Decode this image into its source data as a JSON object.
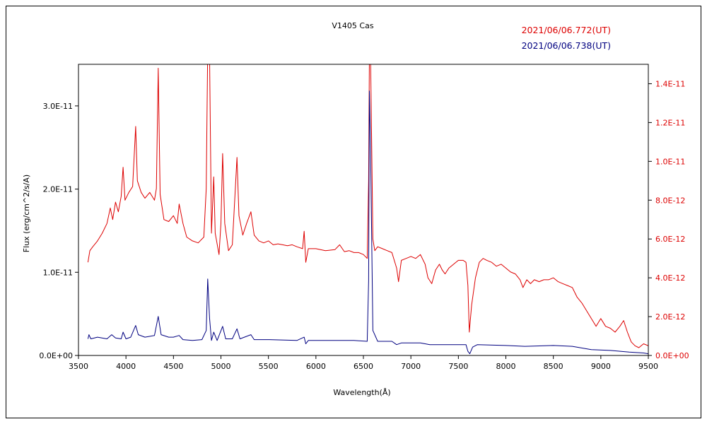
{
  "chart_data": {
    "type": "line",
    "title": "V1405 Cas",
    "xlabel": "Wavelength(Å)",
    "ylabel": "Flux (erg/cm^2/s/A)",
    "xlim": [
      3500,
      9500
    ],
    "x_ticks": [
      3500,
      4000,
      4500,
      5000,
      5500,
      6000,
      6500,
      7000,
      7500,
      8000,
      8500,
      9000,
      9500
    ],
    "y_left": {
      "lim": [
        0,
        3.5e-11
      ],
      "ticks": [
        0,
        1e-11,
        2e-11,
        3e-11
      ],
      "tick_labels": [
        "0.0E+00",
        "1.0E-11",
        "2.0E-11",
        "3.0E-11"
      ],
      "color": "#000000"
    },
    "y_right": {
      "lim": [
        0,
        1.5e-11
      ],
      "ticks": [
        0,
        2e-12,
        4e-12,
        6e-12,
        8e-12,
        1e-11,
        1.2e-11,
        1.4e-11
      ],
      "tick_labels": [
        "0.0E+00",
        "2.0E-12",
        "4.0E-12",
        "6.0E-12",
        "8.0E-12",
        "1.0E-11",
        "1.2E-11",
        "1.4E-11"
      ],
      "color": "#dd0000"
    },
    "grid": false,
    "legend_position": "top-right",
    "series": [
      {
        "name": "2021/06/06.772(UT)",
        "color": "#dd0000",
        "axis": "right",
        "points": [
          [
            3600,
            4.8e-12
          ],
          [
            3620,
            5.4e-12
          ],
          [
            3650,
            5.6e-12
          ],
          [
            3700,
            5.9e-12
          ],
          [
            3750,
            6.3e-12
          ],
          [
            3800,
            6.8e-12
          ],
          [
            3835,
            7.6e-12
          ],
          [
            3860,
            7e-12
          ],
          [
            3890,
            7.9e-12
          ],
          [
            3920,
            7.4e-12
          ],
          [
            3950,
            8.2e-12
          ],
          [
            3970,
            9.7e-12
          ],
          [
            3990,
            8e-12
          ],
          [
            4030,
            8.4e-12
          ],
          [
            4070,
            8.7e-12
          ],
          [
            4102,
            1.18e-11
          ],
          [
            4120,
            9e-12
          ],
          [
            4160,
            8.4e-12
          ],
          [
            4200,
            8.1e-12
          ],
          [
            4250,
            8.4e-12
          ],
          [
            4300,
            8e-12
          ],
          [
            4320,
            8.6e-12
          ],
          [
            4340,
            1.48e-11
          ],
          [
            4360,
            8.3e-12
          ],
          [
            4400,
            7e-12
          ],
          [
            4450,
            6.9e-12
          ],
          [
            4500,
            7.2e-12
          ],
          [
            4540,
            6.8e-12
          ],
          [
            4560,
            7.8e-12
          ],
          [
            4600,
            6.8e-12
          ],
          [
            4640,
            6.1e-12
          ],
          [
            4700,
            5.9e-12
          ],
          [
            4760,
            5.8e-12
          ],
          [
            4820,
            6.1e-12
          ],
          [
            4845,
            8.6e-12
          ],
          [
            4860,
            1.55e-11
          ],
          [
            4880,
            1.55e-11
          ],
          [
            4900,
            6.3e-12
          ],
          [
            4924,
            9.2e-12
          ],
          [
            4940,
            6.3e-12
          ],
          [
            4980,
            5.2e-12
          ],
          [
            5000,
            6.8e-12
          ],
          [
            5018,
            1.04e-11
          ],
          [
            5040,
            6.8e-12
          ],
          [
            5080,
            5.4e-12
          ],
          [
            5120,
            5.7e-12
          ],
          [
            5169,
            1.02e-11
          ],
          [
            5190,
            7.2e-12
          ],
          [
            5230,
            6.2e-12
          ],
          [
            5270,
            6.8e-12
          ],
          [
            5316,
            7.4e-12
          ],
          [
            5350,
            6.2e-12
          ],
          [
            5400,
            5.9e-12
          ],
          [
            5450,
            5.8e-12
          ],
          [
            5500,
            5.9e-12
          ],
          [
            5550,
            5.7e-12
          ],
          [
            5600,
            5.75e-12
          ],
          [
            5650,
            5.7e-12
          ],
          [
            5700,
            5.65e-12
          ],
          [
            5750,
            5.7e-12
          ],
          [
            5800,
            5.6e-12
          ],
          [
            5860,
            5.5e-12
          ],
          [
            5876,
            6.4e-12
          ],
          [
            5893,
            4.8e-12
          ],
          [
            5920,
            5.5e-12
          ],
          [
            6000,
            5.5e-12
          ],
          [
            6100,
            5.4e-12
          ],
          [
            6200,
            5.45e-12
          ],
          [
            6250,
            5.7e-12
          ],
          [
            6300,
            5.35e-12
          ],
          [
            6350,
            5.4e-12
          ],
          [
            6400,
            5.3e-12
          ],
          [
            6450,
            5.3e-12
          ],
          [
            6500,
            5.2e-12
          ],
          [
            6540,
            5e-12
          ],
          [
            6555,
            9e-12
          ],
          [
            6563,
            1.55e-11
          ],
          [
            6575,
            1.55e-11
          ],
          [
            6600,
            6e-12
          ],
          [
            6620,
            5.4e-12
          ],
          [
            6650,
            5.6e-12
          ],
          [
            6700,
            5.5e-12
          ],
          [
            6750,
            5.4e-12
          ],
          [
            6800,
            5.3e-12
          ],
          [
            6850,
            4.5e-12
          ],
          [
            6870,
            3.8e-12
          ],
          [
            6900,
            4.9e-12
          ],
          [
            6950,
            5e-12
          ],
          [
            7000,
            5.1e-12
          ],
          [
            7050,
            5e-12
          ],
          [
            7100,
            5.2e-12
          ],
          [
            7150,
            4.7e-12
          ],
          [
            7180,
            4e-12
          ],
          [
            7220,
            3.7e-12
          ],
          [
            7260,
            4.4e-12
          ],
          [
            7300,
            4.7e-12
          ],
          [
            7330,
            4.4e-12
          ],
          [
            7360,
            4.2e-12
          ],
          [
            7400,
            4.5e-12
          ],
          [
            7450,
            4.7e-12
          ],
          [
            7500,
            4.9e-12
          ],
          [
            7550,
            4.9e-12
          ],
          [
            7580,
            4.8e-12
          ],
          [
            7600,
            3.6e-12
          ],
          [
            7615,
            1.2e-12
          ],
          [
            7640,
            2.6e-12
          ],
          [
            7680,
            4e-12
          ],
          [
            7720,
            4.8e-12
          ],
          [
            7760,
            5e-12
          ],
          [
            7800,
            4.9e-12
          ],
          [
            7850,
            4.8e-12
          ],
          [
            7900,
            4.6e-12
          ],
          [
            7950,
            4.7e-12
          ],
          [
            8000,
            4.5e-12
          ],
          [
            8050,
            4.3e-12
          ],
          [
            8100,
            4.2e-12
          ],
          [
            8150,
            3.9e-12
          ],
          [
            8180,
            3.5e-12
          ],
          [
            8220,
            3.9e-12
          ],
          [
            8260,
            3.7e-12
          ],
          [
            8300,
            3.9e-12
          ],
          [
            8350,
            3.8e-12
          ],
          [
            8400,
            3.9e-12
          ],
          [
            8450,
            3.9e-12
          ],
          [
            8500,
            4e-12
          ],
          [
            8550,
            3.8e-12
          ],
          [
            8600,
            3.7e-12
          ],
          [
            8650,
            3.6e-12
          ],
          [
            8700,
            3.5e-12
          ],
          [
            8750,
            3e-12
          ],
          [
            8800,
            2.7e-12
          ],
          [
            8850,
            2.3e-12
          ],
          [
            8900,
            1.9e-12
          ],
          [
            8950,
            1.5e-12
          ],
          [
            9000,
            1.9e-12
          ],
          [
            9050,
            1.5e-12
          ],
          [
            9100,
            1.4e-12
          ],
          [
            9150,
            1.2e-12
          ],
          [
            9200,
            1.5e-12
          ],
          [
            9240,
            1.8e-12
          ],
          [
            9280,
            1.2e-12
          ],
          [
            9320,
            7e-13
          ],
          [
            9360,
            5e-13
          ],
          [
            9400,
            4e-13
          ],
          [
            9450,
            6e-13
          ],
          [
            9500,
            5e-13
          ]
        ]
      },
      {
        "name": "2021/06/06.738(UT)",
        "color": "#000080",
        "axis": "left",
        "points": [
          [
            3600,
            2e-12
          ],
          [
            3610,
            2.5e-12
          ],
          [
            3630,
            2e-12
          ],
          [
            3700,
            2.2e-12
          ],
          [
            3800,
            2e-12
          ],
          [
            3850,
            2.5e-12
          ],
          [
            3890,
            2.1e-12
          ],
          [
            3950,
            2e-12
          ],
          [
            3970,
            2.8e-12
          ],
          [
            4000,
            2e-12
          ],
          [
            4050,
            2.2e-12
          ],
          [
            4102,
            3.6e-12
          ],
          [
            4130,
            2.5e-12
          ],
          [
            4200,
            2.2e-12
          ],
          [
            4300,
            2.4e-12
          ],
          [
            4340,
            4.7e-12
          ],
          [
            4370,
            2.5e-12
          ],
          [
            4450,
            2.2e-12
          ],
          [
            4500,
            2.2e-12
          ],
          [
            4560,
            2.4e-12
          ],
          [
            4600,
            1.9e-12
          ],
          [
            4700,
            1.8e-12
          ],
          [
            4800,
            1.9e-12
          ],
          [
            4845,
            3e-12
          ],
          [
            4861,
            9.2e-12
          ],
          [
            4880,
            4.5e-12
          ],
          [
            4900,
            1.8e-12
          ],
          [
            4924,
            2.8e-12
          ],
          [
            4960,
            1.8e-12
          ],
          [
            5018,
            3.5e-12
          ],
          [
            5050,
            2e-12
          ],
          [
            5120,
            2e-12
          ],
          [
            5169,
            3.2e-12
          ],
          [
            5200,
            2e-12
          ],
          [
            5316,
            2.5e-12
          ],
          [
            5350,
            1.9e-12
          ],
          [
            5500,
            1.9e-12
          ],
          [
            5800,
            1.8e-12
          ],
          [
            5876,
            2.2e-12
          ],
          [
            5893,
            1.4e-12
          ],
          [
            5920,
            1.8e-12
          ],
          [
            6200,
            1.8e-12
          ],
          [
            6400,
            1.8e-12
          ],
          [
            6540,
            1.7e-12
          ],
          [
            6555,
            9e-12
          ],
          [
            6563,
            3.18e-11
          ],
          [
            6575,
            2.5e-11
          ],
          [
            6600,
            3e-12
          ],
          [
            6650,
            1.7e-12
          ],
          [
            6800,
            1.7e-12
          ],
          [
            6850,
            1.3e-12
          ],
          [
            6900,
            1.5e-12
          ],
          [
            7100,
            1.5e-12
          ],
          [
            7200,
            1.3e-12
          ],
          [
            7400,
            1.3e-12
          ],
          [
            7580,
            1.3e-12
          ],
          [
            7600,
            5e-13
          ],
          [
            7620,
            2e-13
          ],
          [
            7650,
            1e-12
          ],
          [
            7700,
            1.3e-12
          ],
          [
            8000,
            1.2e-12
          ],
          [
            8200,
            1.1e-12
          ],
          [
            8500,
            1.2e-12
          ],
          [
            8700,
            1.1e-12
          ],
          [
            8900,
            7e-13
          ],
          [
            9100,
            6e-13
          ],
          [
            9300,
            4e-13
          ],
          [
            9450,
            3e-13
          ],
          [
            9500,
            2e-13
          ]
        ]
      }
    ]
  }
}
